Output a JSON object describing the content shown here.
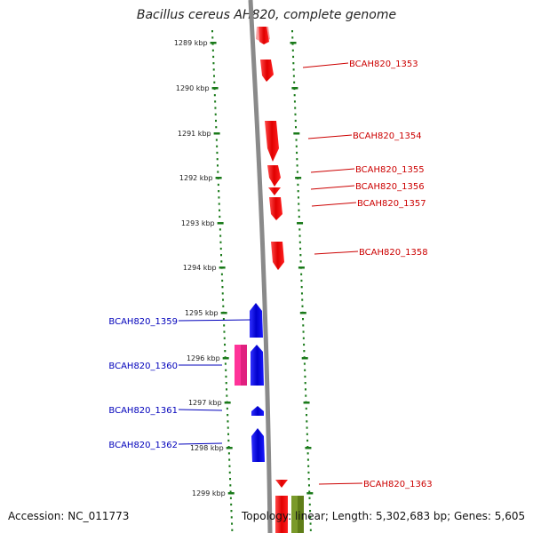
{
  "title": "Bacillus cereus AH820, complete genome",
  "footer": {
    "accession": "Accession: NC_011773",
    "topology": "Topology: linear; Length: 5,302,683 bp; Genes: 5,605"
  },
  "colors": {
    "forward_gene": "#ff0000",
    "reverse_gene": "#0000ff",
    "pink_feature": "#ff3399",
    "olive_feature": "#7a9a2a",
    "scale_ticks": "#1a7a1a",
    "backbone": "#888888"
  },
  "scale_ticks": [
    {
      "label": "1289 kbp"
    },
    {
      "label": "1290 kbp"
    },
    {
      "label": "1291 kbp"
    },
    {
      "label": "1292 kbp"
    },
    {
      "label": "1293 kbp"
    },
    {
      "label": "1294 kbp"
    },
    {
      "label": "1295 kbp"
    },
    {
      "label": "1296 kbp"
    },
    {
      "label": "1297 kbp"
    },
    {
      "label": "1298 kbp"
    },
    {
      "label": "1299 kbp"
    }
  ],
  "genes_right": [
    {
      "label": "BCAH820_1353"
    },
    {
      "label": "BCAH820_1354"
    },
    {
      "label": "BCAH820_1355"
    },
    {
      "label": "BCAH820_1356"
    },
    {
      "label": "BCAH820_1357"
    },
    {
      "label": "BCAH820_1358"
    },
    {
      "label": "BCAH820_1363"
    }
  ],
  "genes_left": [
    {
      "label": "BCAH820_1359"
    },
    {
      "label": "BCAH820_1360"
    },
    {
      "label": "BCAH820_1361"
    },
    {
      "label": "BCAH820_1362"
    }
  ]
}
